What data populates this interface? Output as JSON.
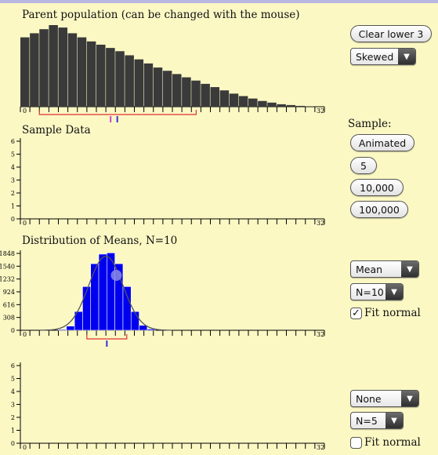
{
  "panels": {
    "parent": {
      "title": "Parent population (can be changed with the mouse)",
      "axis_max_label": "32",
      "axis_min_label": "0",
      "values": [
        0.85,
        0.9,
        0.95,
        1.0,
        0.97,
        0.9,
        0.85,
        0.8,
        0.76,
        0.72,
        0.68,
        0.63,
        0.58,
        0.53,
        0.48,
        0.44,
        0.4,
        0.36,
        0.32,
        0.28,
        0.24,
        0.2,
        0.16,
        0.13,
        0.1,
        0.07,
        0.05,
        0.03,
        0.02,
        0.01,
        0.005,
        0.002
      ],
      "bracket_range": [
        2,
        18.5
      ],
      "marker_positions": [
        9.5,
        10.2
      ]
    },
    "sample": {
      "title": "Sample Data",
      "y_ticks": [
        "0",
        "1",
        "2",
        "3",
        "4",
        "5",
        "6"
      ],
      "axis_max_label": "32",
      "axis_min_label": "0"
    },
    "means": {
      "title": "Distribution of Means, N=10",
      "y_ticks": [
        "0",
        "308",
        "616",
        "924",
        "1232",
        "1540",
        "1848"
      ],
      "axis_max_label": "32",
      "axis_min_label": "0",
      "bars": [
        0.02,
        0.1,
        0.45,
        1.05,
        1.6,
        1.83,
        1.86,
        1.6,
        1.05,
        0.45,
        0.12,
        0.03
      ],
      "bar_start": 4,
      "bar_width": 0.85,
      "normal_mean": 9.0,
      "normal_sd": 1.8,
      "normal_peak": 1.78,
      "bracket_range": [
        7.0,
        11.2
      ],
      "marker_position": 9.1,
      "highlight_point": [
        10.1,
        1.32
      ]
    },
    "fourth": {
      "y_ticks": [
        "0",
        "1",
        "2",
        "3",
        "4",
        "5",
        "6"
      ],
      "axis_max_label": "32",
      "axis_min_label": "0"
    }
  },
  "controls": {
    "clear_lower": "Clear lower 3",
    "distribution_select": "Skewed",
    "sample_label": "Sample:",
    "animated": "Animated",
    "n5": "5",
    "n10000": "10,000",
    "n100000": "100,000",
    "statistic_select": "Mean",
    "n_select_means": "N=10",
    "fit_normal_means": "Fit normal",
    "fit_normal_means_checked": "✓",
    "statistic_select_4": "None",
    "n_select_4": "N=5",
    "fit_normal_4": "Fit normal"
  },
  "colors": {
    "background": "#fbf8c4",
    "parent_bars": "#3a3a3a",
    "means_bars": "#0000ee",
    "bracket": "#e03030",
    "marker_mean": "#3333dd",
    "marker_median": "#cc44cc"
  }
}
